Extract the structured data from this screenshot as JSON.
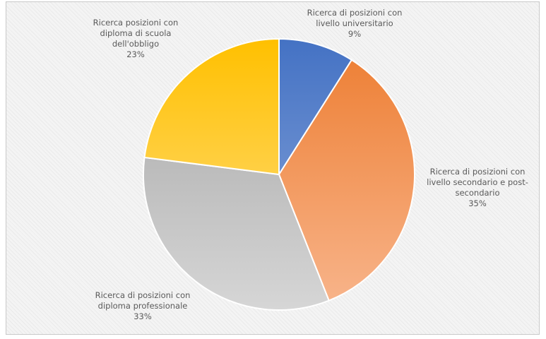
{
  "chart_data": {
    "type": "pie",
    "title": "",
    "slices": [
      {
        "label_lines": [
          "Ricerca di posizioni con",
          "livello universitario"
        ],
        "pct_label": "9%",
        "value": 9,
        "color_top": "#4472c4",
        "color_bottom": "#8ea9db"
      },
      {
        "label_lines": [
          "Ricerca di posizioni con",
          "livello secondario e post-",
          "secondario"
        ],
        "pct_label": "35%",
        "value": 35,
        "color_top": "#ed7d31",
        "color_bottom": "#f8b58c"
      },
      {
        "label_lines": [
          "Ricerca di posizioni con",
          "diploma professionale"
        ],
        "pct_label": "33%",
        "value": 33,
        "color_top": "#a5a5a5",
        "color_bottom": "#d6d6d6"
      },
      {
        "label_lines": [
          "Ricerca posizioni con",
          "diploma di scuola",
          "dell'obbligo"
        ],
        "pct_label": "23%",
        "value": 23,
        "color_top": "#ffc000",
        "color_bottom": "#ffe08a"
      }
    ]
  }
}
